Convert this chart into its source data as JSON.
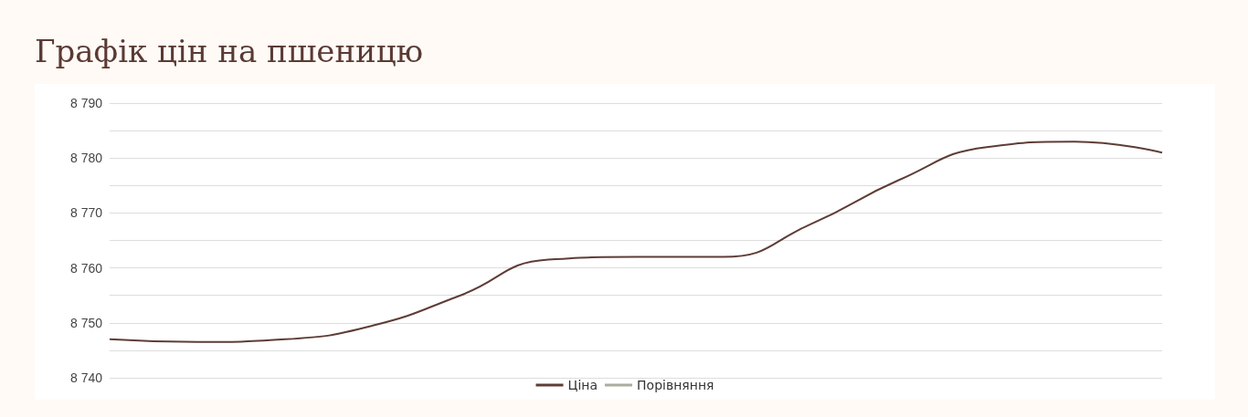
{
  "chart_data": {
    "type": "line",
    "title": "Графік цін на пшеницю",
    "categories": [
      null,
      null,
      null,
      null,
      null,
      null,
      null,
      null,
      null,
      null,
      null,
      null,
      null
    ],
    "series": [
      {
        "name": "Ціна",
        "color": "#5e3d36",
        "values": [
          8747,
          8746.5,
          8747,
          8749.5,
          8755,
          8761.5,
          8762,
          8762,
          8768,
          8776,
          8782,
          8783,
          8781
        ]
      },
      {
        "name": "Порівняння",
        "color": "#a9ad9e",
        "values": [
          null,
          null,
          null,
          null,
          null,
          null,
          null,
          null,
          null,
          null,
          null,
          null,
          null
        ]
      }
    ],
    "ylim": [
      8740,
      8790
    ],
    "yticks": [
      8740,
      {
        "value": 8745,
        "label": null
      },
      8750,
      {
        "value": 8755,
        "label": null
      },
      8760,
      {
        "value": 8765,
        "label": null
      },
      8770,
      {
        "value": 8775,
        "label": null
      },
      8780,
      {
        "value": 8785,
        "label": null
      },
      8790
    ],
    "grid": "y",
    "legend": "bottom",
    "marker": "none",
    "line_style": "solid"
  }
}
